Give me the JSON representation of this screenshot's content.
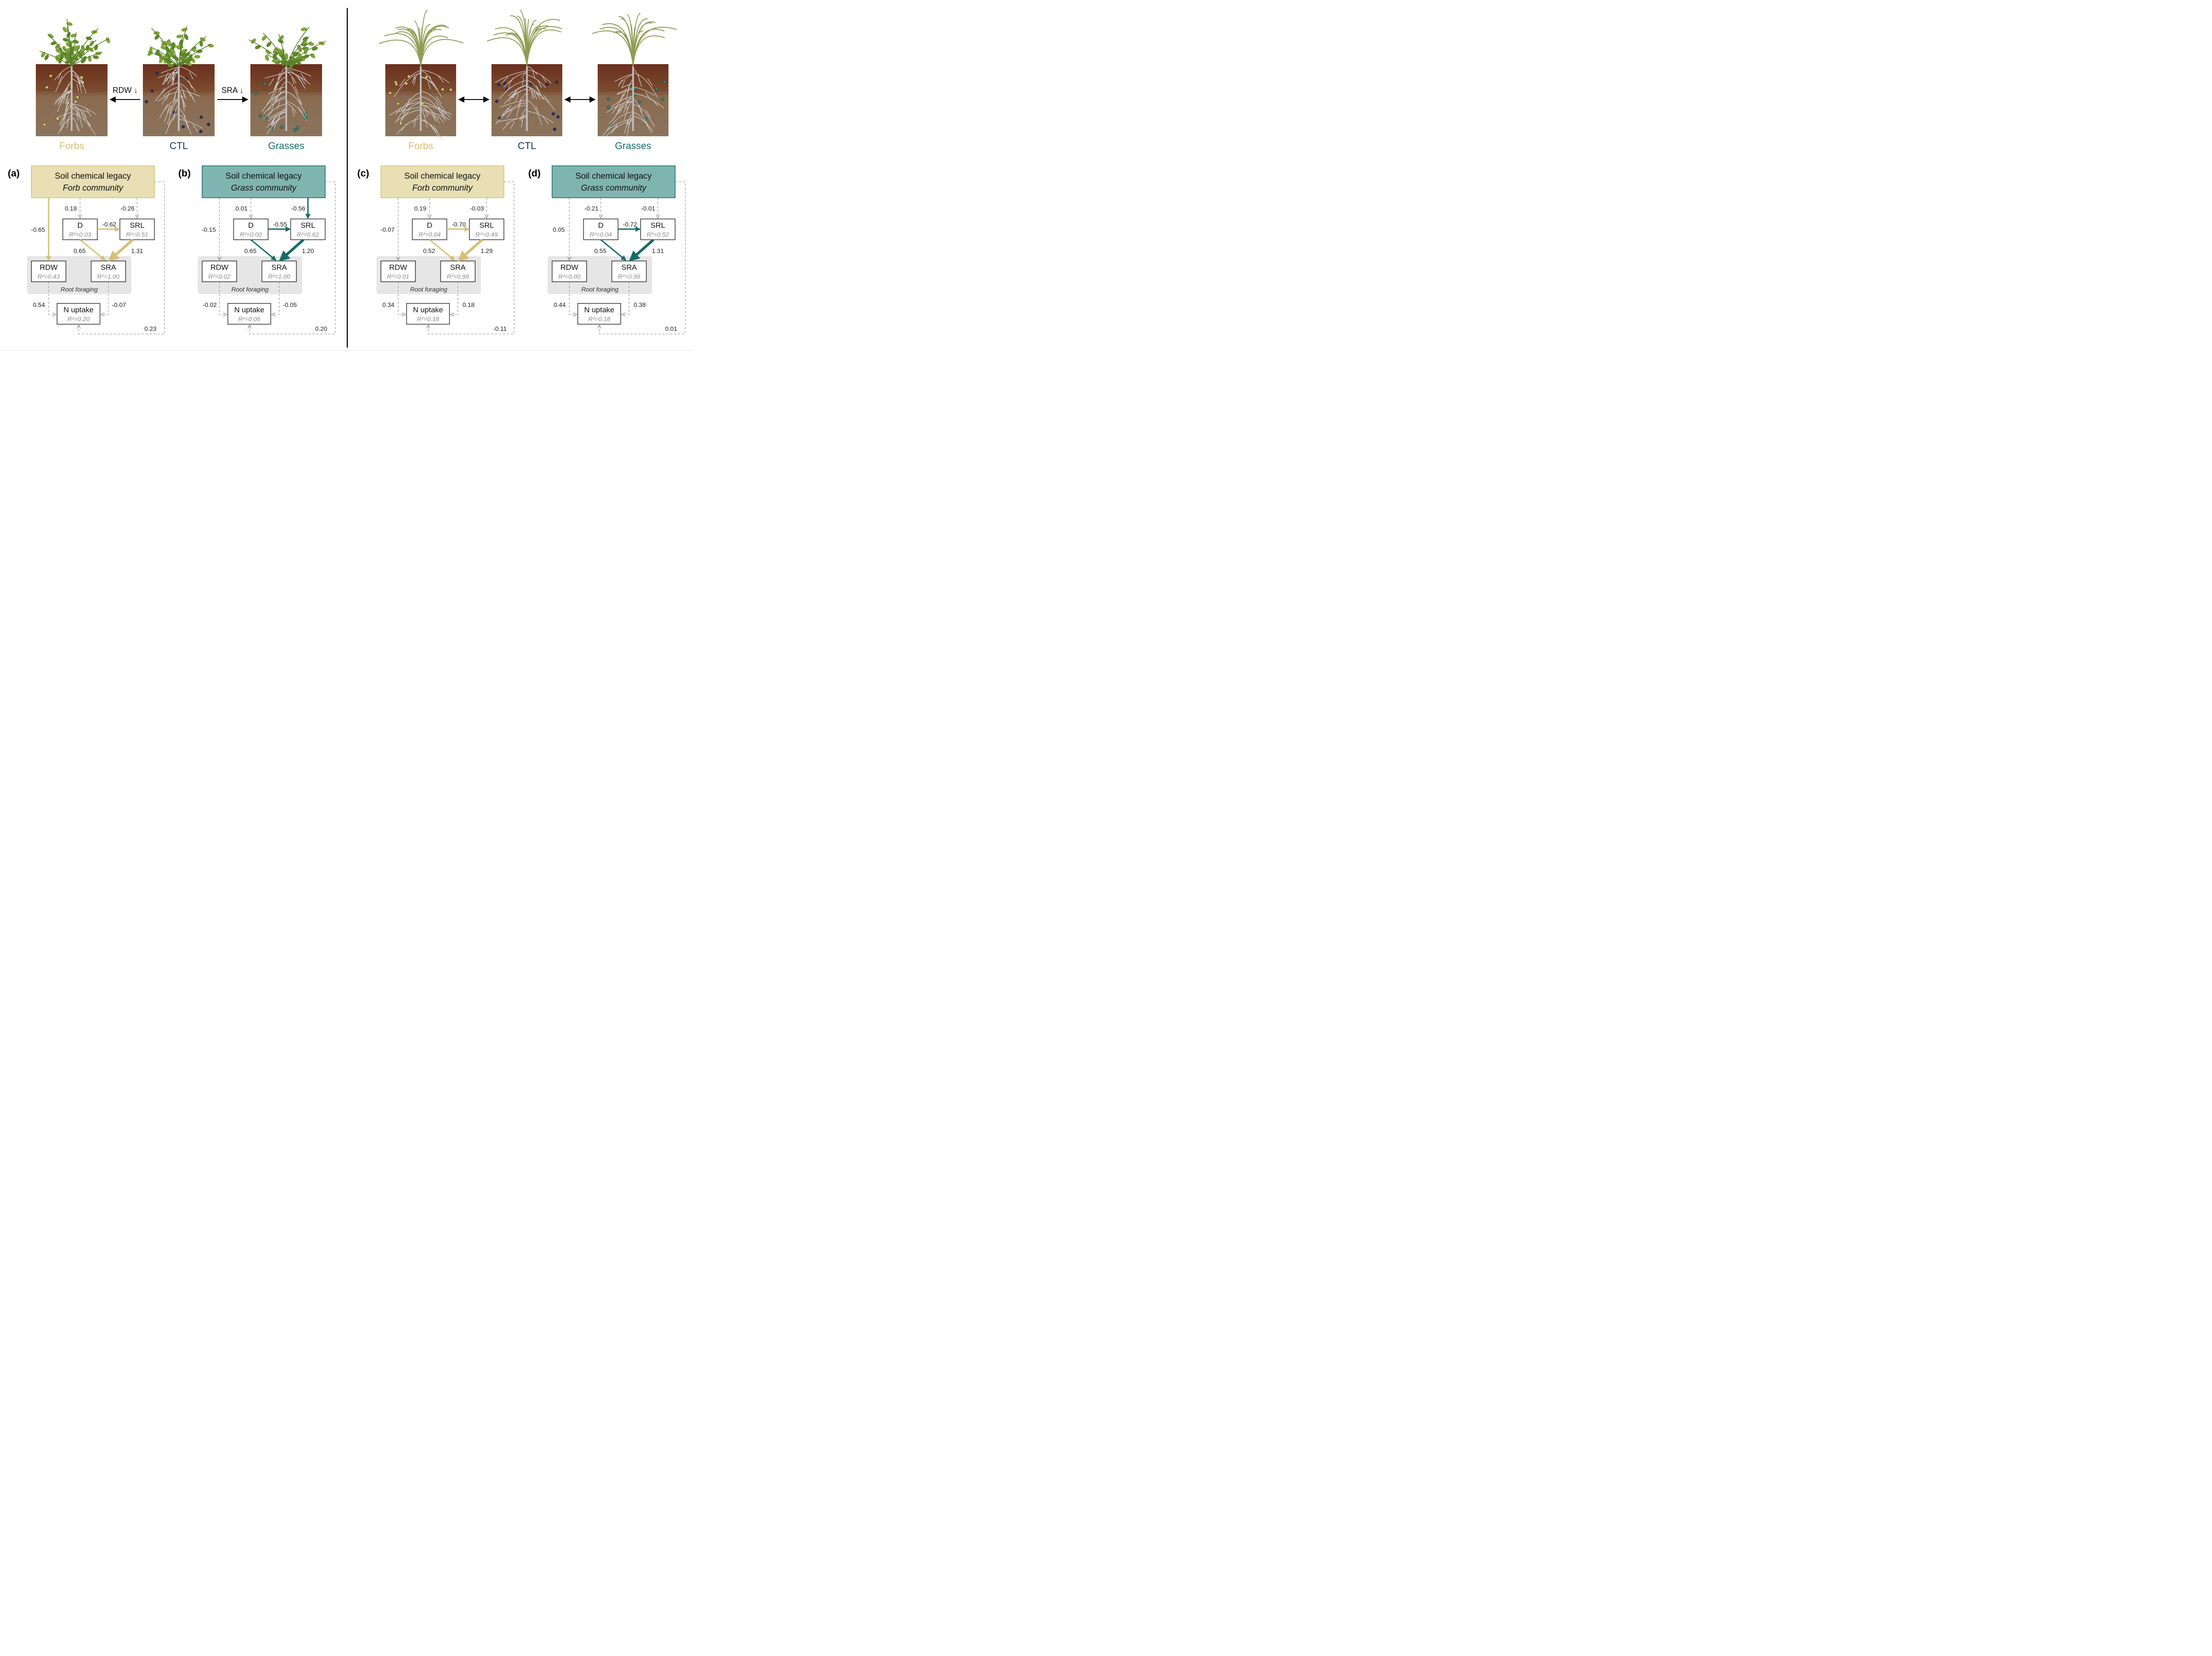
{
  "colors": {
    "forb": "#d5c176",
    "forb_fill": "#e8dfb4",
    "grass": "#176b68",
    "grass_fill": "#7fb5b1",
    "ctl": "#1c2e5c",
    "dashed": "#8a8a8a",
    "foraging_bg": "#e6e6e6"
  },
  "illustrations": {
    "left": {
      "plant_type": "forb",
      "labels": [
        "Forbs",
        "CTL",
        "Grasses"
      ],
      "arrows": [
        {
          "label": "RDW ↓",
          "direction": "left"
        },
        {
          "label": "SRA ↓",
          "direction": "right"
        }
      ]
    },
    "right": {
      "plant_type": "grass",
      "labels": [
        "Forbs",
        "CTL",
        "Grasses"
      ],
      "arrows": [
        {
          "label": "",
          "direction": "both"
        },
        {
          "label": "",
          "direction": "both"
        }
      ]
    }
  },
  "panels": [
    {
      "letter": "(a)",
      "community": "forb",
      "legacy_title": "Soil chemical legacy",
      "legacy_subtitle": "Forb community",
      "D_r2": "R²=0.03",
      "SRL_r2": "R²=0.51",
      "RDW_r2": "R²=0.43",
      "SRA_r2": "R²=1.00",
      "N_r2": "R²=0.20",
      "coef_leg_D": "0.18",
      "coef_leg_SRL": "-0.26",
      "coef_leg_RDW": "-0.65",
      "coef_D_SRL": "-0.62",
      "coef_D_SRA": "0.65",
      "coef_SRL_SRA": "1.31",
      "coef_RDW_N": "0.54",
      "coef_SRA_N": "-0.07",
      "coef_leg_N": "0.23",
      "sig": {
        "leg_D": false,
        "leg_SRL": false,
        "leg_RDW": true,
        "D_SRL": true,
        "D_SRA": true,
        "SRL_SRA": true
      }
    },
    {
      "letter": "(b)",
      "community": "grass",
      "legacy_title": "Soil chemical legacy",
      "legacy_subtitle": "Grass community",
      "D_r2": "R²=0.00",
      "SRL_r2": "R²=0.62",
      "RDW_r2": "R²=0.02",
      "SRA_r2": "R²=1.00",
      "N_r2": "R²=0.06",
      "coef_leg_D": "0.01",
      "coef_leg_SRL": "-0.56",
      "coef_leg_RDW": "-0.15",
      "coef_D_SRL": "-0.55",
      "coef_D_SRA": "0.65",
      "coef_SRL_SRA": "1.20",
      "coef_RDW_N": "-0.02",
      "coef_SRA_N": "-0.05",
      "coef_leg_N": "0.20",
      "sig": {
        "leg_D": false,
        "leg_SRL": true,
        "leg_RDW": false,
        "D_SRL": true,
        "D_SRA": true,
        "SRL_SRA": true
      }
    },
    {
      "letter": "(c)",
      "community": "forb",
      "legacy_title": "Soil chemical legacy",
      "legacy_subtitle": "Forb community",
      "D_r2": "R²=0.04",
      "SRL_r2": "R²=0.49",
      "RDW_r2": "R²=0.01",
      "SRA_r2": "R²=0.99",
      "N_r2": "R²=0.18",
      "coef_leg_D": "0.19",
      "coef_leg_SRL": "-0.03",
      "coef_leg_RDW": "-0.07",
      "coef_D_SRL": "-0.70",
      "coef_D_SRA": "0.52",
      "coef_SRL_SRA": "1.29",
      "coef_RDW_N": "0.34",
      "coef_SRA_N": "0.18",
      "coef_leg_N": "-0.11",
      "sig": {
        "leg_D": false,
        "leg_SRL": false,
        "leg_RDW": false,
        "D_SRL": true,
        "D_SRA": true,
        "SRL_SRA": true
      }
    },
    {
      "letter": "(d)",
      "community": "grass",
      "legacy_title": "Soil chemical legacy",
      "legacy_subtitle": "Grass community",
      "D_r2": "R²=0.04",
      "SRL_r2": "R²=0.52",
      "RDW_r2": "R²=0.00",
      "SRA_r2": "R²=0.99",
      "N_r2": "R²=0.18",
      "coef_leg_D": "-0.21",
      "coef_leg_SRL": "-0.01",
      "coef_leg_RDW": "0.05",
      "coef_D_SRL": "-0.72",
      "coef_D_SRA": "0.55",
      "coef_SRL_SRA": "1.31",
      "coef_RDW_N": "0.44",
      "coef_SRA_N": "0.38",
      "coef_leg_N": "0.01",
      "sig": {
        "leg_D": false,
        "leg_SRL": false,
        "leg_RDW": false,
        "D_SRL": true,
        "D_SRA": true,
        "SRL_SRA": true
      }
    }
  ],
  "node_names": {
    "D": "D",
    "SRL": "SRL",
    "RDW": "RDW",
    "SRA": "SRA",
    "N": "N uptake"
  },
  "foraging_label": "Root foraging"
}
